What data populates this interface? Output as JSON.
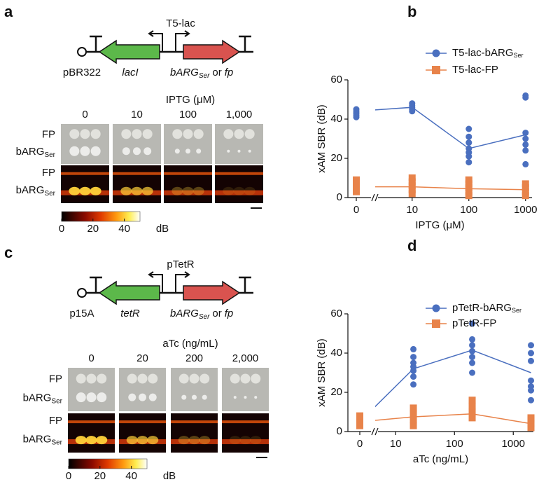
{
  "panels": {
    "a": {
      "label": "a",
      "promoter": "T5-lac",
      "origin": "pBR322",
      "repressor": "lacI",
      "cargo": {
        "main": "bARG",
        "sub": "Ser",
        "join": "or",
        "alt": "fp"
      },
      "inducer": "IPTG (μM)",
      "concentrations": [
        "0",
        "10",
        "100",
        "1,000"
      ],
      "rows": [
        {
          "text": "FP"
        },
        {
          "text": "bARG",
          "sub": "Ser"
        },
        {
          "text": "FP"
        },
        {
          "text": "bARG",
          "sub": "Ser"
        }
      ],
      "colorbar": {
        "lim": [
          0,
          50
        ],
        "ticks": [
          0,
          20,
          40
        ],
        "unit": "dB"
      }
    },
    "c": {
      "label": "c",
      "promoter": "pTetR",
      "origin": "p15A",
      "repressor": "tetR",
      "cargo": {
        "main": "bARG",
        "sub": "Ser",
        "join": "or",
        "alt": "fp"
      },
      "inducer": "aTc (ng/mL)",
      "concentrations": [
        "0",
        "20",
        "200",
        "2,000"
      ],
      "rows": [
        {
          "text": "FP"
        },
        {
          "text": "bARG",
          "sub": "Ser"
        },
        {
          "text": "FP"
        },
        {
          "text": "bARG",
          "sub": "Ser"
        }
      ],
      "colorbar": {
        "lim": [
          0,
          50
        ],
        "ticks": [
          0,
          20,
          40
        ],
        "unit": "dB"
      }
    }
  },
  "chart_data": [
    {
      "type": "scatter",
      "panel_label": "b",
      "ylabel": "xAM SBR (dB)",
      "xlabel": "IPTG (μM)",
      "xscale": "log",
      "x_break": true,
      "xlim": [
        2.5,
        1300
      ],
      "ylim": [
        0,
        60
      ],
      "xticks": [
        0,
        10,
        100,
        1000
      ],
      "yticks": [
        0,
        20,
        40,
        60
      ],
      "legend": "upper right",
      "series": [
        {
          "name": "T5-lac-bARG",
          "name_subscript": "Ser",
          "color": "#4a6fbf",
          "marker": "circle",
          "x": [
            0,
            0,
            0,
            0,
            0,
            10,
            10,
            10,
            10,
            10,
            100,
            100,
            100,
            100,
            100,
            100,
            100,
            1000,
            1000,
            1000,
            1000,
            1000,
            1000,
            1000
          ],
          "values": [
            41,
            42,
            43,
            44,
            45,
            44,
            45,
            46,
            47,
            48,
            18,
            21,
            23,
            25,
            28,
            31,
            35,
            17,
            24,
            27,
            30,
            33,
            51,
            52
          ],
          "line_x": [
            0,
            10,
            100,
            1000
          ],
          "line_values": [
            44,
            46,
            25,
            32
          ]
        },
        {
          "name": "T5-lac-FP",
          "color": "#e8834a",
          "marker": "square",
          "x": [
            0,
            0,
            0,
            0,
            10,
            10,
            10,
            10,
            10,
            100,
            100,
            100,
            100,
            100,
            1000,
            1000,
            1000,
            1000
          ],
          "values": [
            3,
            5,
            7,
            9,
            2,
            4,
            6,
            8,
            10,
            1,
            3,
            5,
            7,
            9,
            1,
            3,
            5,
            7
          ],
          "line_x": [
            0,
            10,
            100,
            1000
          ],
          "line_values": [
            5.5,
            5.5,
            4.5,
            4
          ]
        }
      ]
    },
    {
      "type": "scatter",
      "panel_label": "d",
      "ylabel": "xAM SBR (dB)",
      "xlabel": "aTc (ng/mL)",
      "xscale": "log",
      "x_break": true,
      "xlim": [
        5,
        2200
      ],
      "ylim": [
        0,
        60
      ],
      "xticks": [
        0,
        10,
        100,
        1000
      ],
      "yticks": [
        0,
        20,
        40,
        60
      ],
      "legend": "upper right",
      "series": [
        {
          "name": "pTetR-bARG",
          "name_subscript": "Ser",
          "color": "#4a6fbf",
          "marker": "circle",
          "x": [
            0,
            0,
            0,
            0,
            0,
            20,
            20,
            20,
            20,
            20,
            20,
            20,
            200,
            200,
            200,
            200,
            200,
            200,
            200,
            2000,
            2000,
            2000,
            2000,
            2000,
            2000,
            2000
          ],
          "values": [
            3,
            4,
            5,
            6,
            7,
            24,
            28,
            31,
            33,
            35,
            38,
            42,
            30,
            35,
            38,
            41,
            44,
            47,
            55,
            16,
            21,
            23,
            26,
            36,
            40,
            44
          ],
          "line_x": [
            0,
            20,
            200,
            2000
          ],
          "line_values": [
            5,
            32,
            41.5,
            30
          ]
        },
        {
          "name": "pTetR-FP",
          "color": "#e8834a",
          "marker": "square",
          "x": [
            0,
            0,
            0,
            0,
            20,
            20,
            20,
            20,
            200,
            200,
            200,
            200,
            2000,
            2000,
            2000,
            2000
          ],
          "values": [
            3,
            5,
            7,
            8,
            3,
            6,
            9,
            12,
            7,
            10,
            13,
            16,
            2,
            4,
            6,
            7
          ],
          "line_x": [
            0,
            20,
            200,
            2000
          ],
          "line_values": [
            5,
            7.5,
            9,
            4
          ]
        }
      ]
    }
  ]
}
